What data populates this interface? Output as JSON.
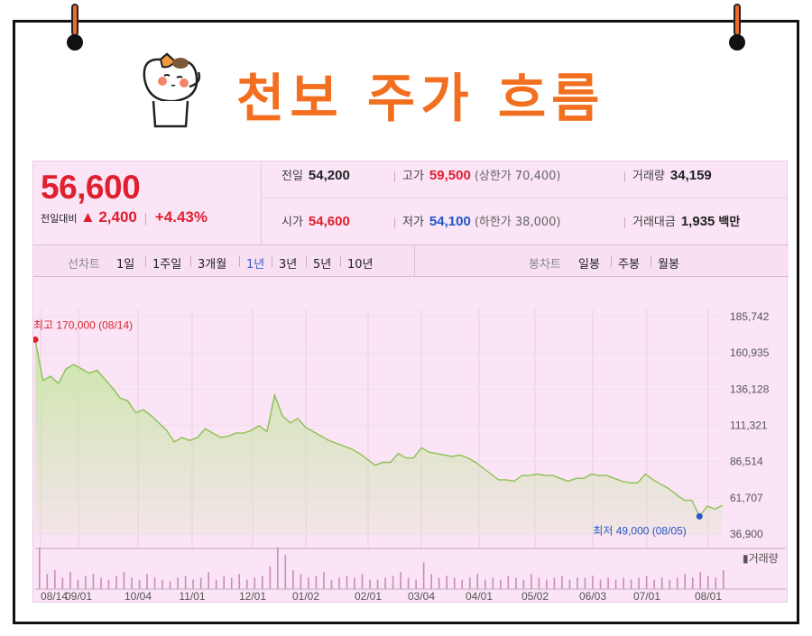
{
  "header": {
    "title": "천보 주가 흐름"
  },
  "quote": {
    "price": "56,600",
    "change_label": "전일대비",
    "change_value": "2,400",
    "change_percent": "+4.43%",
    "stats": {
      "prev_close_label": "전일",
      "prev_close": "54,200",
      "high_label": "고가",
      "high": "59,500",
      "upper_limit": "(상한가 70,400)",
      "volume_label": "거래량",
      "volume": "34,159",
      "open_label": "시가",
      "open": "54,600",
      "low_label": "저가",
      "low": "54,100",
      "lower_limit": "(하한가 38,000)",
      "turnover_label": "거래대금",
      "turnover": "1,935",
      "turnover_unit": "백만"
    }
  },
  "tabs": {
    "line_chart_label": "선차트",
    "periods": [
      "1일",
      "1주일",
      "3개월",
      "1년",
      "3년",
      "5년",
      "10년"
    ],
    "active_period": "1년",
    "candle_label": "봉차트",
    "candle_periods": [
      "일봉",
      "주봉",
      "월봉"
    ]
  },
  "chart": {
    "high_annotation": "최고 170,000 (08/14)",
    "low_annotation": "최저 49,000 (08/05)",
    "volume_label": "거래량",
    "colors": {
      "line": "#8cc152",
      "fill": "#c9e6a6",
      "up": "#e01f2f",
      "down": "#2a55c4",
      "volume": "#c98bb8"
    }
  },
  "chart_data": {
    "type": "area",
    "y_ticks": [
      "185,742",
      "160,935",
      "136,128",
      "111,321",
      "86,514",
      "61,707",
      "36,900"
    ],
    "ylim": [
      36900,
      185742
    ],
    "x_ticks": [
      "08/14",
      "09/01",
      "10/04",
      "11/01",
      "12/01",
      "01/02",
      "02/01",
      "03/04",
      "04/01",
      "05/02",
      "06/03",
      "07/01",
      "08/01"
    ],
    "series": [
      {
        "values": [
          170000,
          142000,
          145000,
          140000,
          150000,
          153000,
          150000,
          147000,
          149000,
          143000,
          137000,
          130000,
          128000,
          120000,
          122000,
          118000,
          113000,
          108000,
          100000,
          103000,
          101000,
          103000,
          109000,
          106000,
          103000,
          104000,
          106000,
          106000,
          108000,
          111000,
          107000,
          132000,
          118000,
          113000,
          116000,
          110000,
          107000,
          104000,
          101000,
          99000,
          97000,
          95000,
          92000,
          88000,
          84000,
          86000,
          86000,
          92000,
          89000,
          89000,
          96000,
          93000,
          92000,
          91000,
          90000,
          91000,
          89000,
          86000,
          82000,
          78000,
          74000,
          74000,
          73000,
          77000,
          77000,
          78000,
          77000,
          77000,
          75000,
          73000,
          75000,
          75000,
          78000,
          77000,
          77000,
          75000,
          73000,
          72000,
          72000,
          78000,
          74000,
          71000,
          68000,
          64000,
          60000,
          60000,
          49000,
          56000,
          54000,
          56600
        ]
      }
    ],
    "high": 170000,
    "low": 49000,
    "volume": [
      22,
      8,
      10,
      6,
      9,
      5,
      7,
      8,
      6,
      5,
      7,
      9,
      6,
      5,
      8,
      6,
      5,
      4,
      6,
      7,
      5,
      6,
      9,
      5,
      7,
      6,
      8,
      5,
      6,
      7,
      12,
      22,
      18,
      10,
      8,
      6,
      7,
      9,
      5,
      6,
      7,
      6,
      8,
      5,
      5,
      6,
      7,
      9,
      6,
      5,
      14,
      8,
      6,
      7,
      6,
      5,
      6,
      8,
      5,
      6,
      5,
      7,
      6,
      5,
      8,
      6,
      5,
      6,
      7,
      5,
      6,
      6,
      7,
      5,
      6,
      5,
      6,
      5,
      6,
      7,
      5,
      6,
      5,
      6,
      8,
      6,
      9,
      7,
      6,
      10
    ]
  }
}
